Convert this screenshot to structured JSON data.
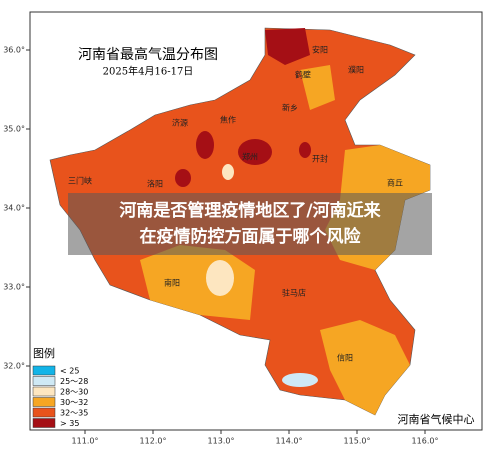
{
  "map": {
    "title": "河南省最高气温分布图",
    "subtitle": "2025年4月16-17日",
    "lat_ticks": [
      "36.0°",
      "35.0°",
      "34.0°",
      "33.0°",
      "32.0°"
    ],
    "lon_ticks": [
      "111.0°",
      "112.0°",
      "113.0°",
      "114.0°",
      "115.0°",
      "116.0°"
    ],
    "cities": [
      "安阳",
      "濮阳",
      "鹤壁",
      "新乡",
      "济源",
      "焦作",
      "三门峡",
      "洛阳",
      "郑州",
      "开封",
      "商丘",
      "南阳",
      "驻马店",
      "信阳"
    ],
    "legend": {
      "title": "图例",
      "items": [
        "< 25",
        "25～28",
        "28～30",
        "30～32",
        "32～35",
        "> 35"
      ]
    },
    "credit": "河南省气候中心",
    "overlay": [
      "河南是否管理疫情地区了/河南近来",
      "在疫情防控方面属于哪个风险"
    ]
  }
}
